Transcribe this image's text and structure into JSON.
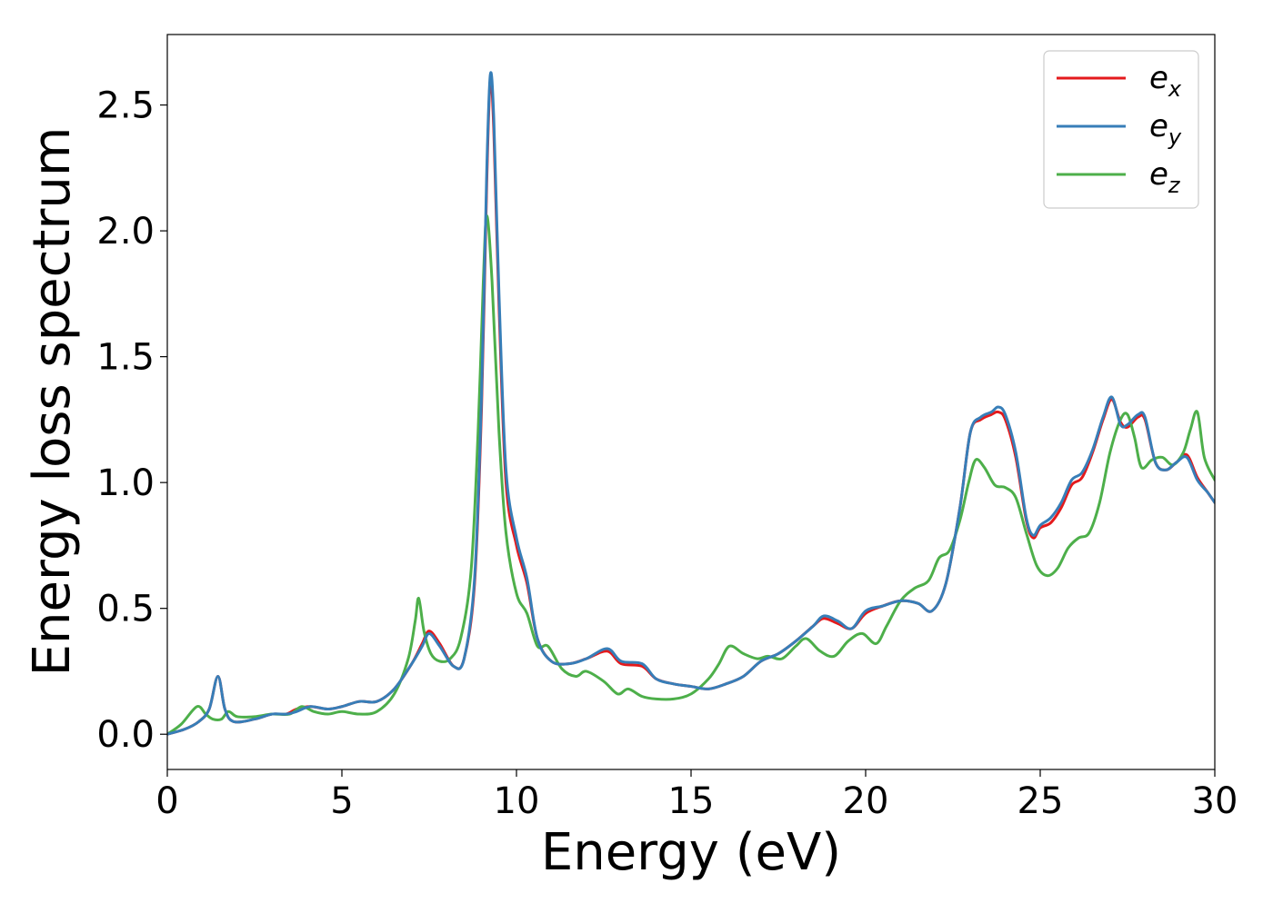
{
  "chart_data": {
    "type": "line",
    "title": "",
    "xlabel": "Energy (eV)",
    "ylabel": "Energy loss spectrum",
    "xlim": [
      0,
      30
    ],
    "ylim": [
      -0.14,
      2.78
    ],
    "xticks": [
      0,
      5,
      10,
      15,
      20,
      25,
      30
    ],
    "xtick_labels": [
      "0",
      "5",
      "10",
      "15",
      "20",
      "25",
      "30"
    ],
    "yticks": [
      0.0,
      0.5,
      1.0,
      1.5,
      2.0,
      2.5
    ],
    "ytick_labels": [
      "0.0",
      "0.5",
      "1.0",
      "1.5",
      "2.0",
      "2.5"
    ],
    "grid": false,
    "legend_position": "top-right",
    "series": [
      {
        "name": "e_x",
        "label_base": "e",
        "label_sub": "x",
        "color": "#e41a1c",
        "x": [
          0,
          0.5,
          0.9,
          1.2,
          1.45,
          1.65,
          1.9,
          2.5,
          3,
          3.4,
          3.7,
          4.1,
          4.6,
          5,
          5.5,
          6,
          6.5,
          7,
          7.3,
          7.5,
          7.8,
          8.2,
          8.5,
          8.8,
          9.0,
          9.15,
          9.25,
          9.35,
          9.5,
          9.7,
          10.0,
          10.3,
          10.6,
          11.0,
          11.5,
          12.0,
          12.6,
          13.0,
          13.6,
          14.0,
          14.5,
          15.0,
          15.5,
          16.0,
          16.5,
          17.0,
          17.5,
          18.0,
          18.5,
          18.8,
          19.2,
          19.6,
          20.0,
          20.5,
          21.0,
          21.5,
          21.9,
          22.3,
          22.7,
          23.0,
          23.3,
          23.6,
          23.8,
          24.0,
          24.3,
          24.6,
          24.8,
          25.0,
          25.3,
          25.6,
          25.9,
          26.2,
          26.5,
          26.8,
          27.05,
          27.3,
          27.5,
          27.8,
          28.0,
          28.3,
          28.6,
          28.9,
          29.2,
          29.5,
          29.8,
          30.0
        ],
        "values": [
          0.0,
          0.02,
          0.05,
          0.1,
          0.23,
          0.1,
          0.05,
          0.06,
          0.08,
          0.08,
          0.1,
          0.11,
          0.1,
          0.11,
          0.13,
          0.13,
          0.18,
          0.28,
          0.36,
          0.41,
          0.36,
          0.27,
          0.3,
          0.6,
          1.3,
          2.2,
          2.6,
          2.4,
          1.7,
          1.0,
          0.75,
          0.6,
          0.38,
          0.29,
          0.28,
          0.3,
          0.33,
          0.28,
          0.27,
          0.22,
          0.2,
          0.19,
          0.18,
          0.2,
          0.23,
          0.29,
          0.32,
          0.37,
          0.43,
          0.46,
          0.44,
          0.42,
          0.48,
          0.51,
          0.53,
          0.52,
          0.49,
          0.6,
          0.9,
          1.2,
          1.25,
          1.27,
          1.28,
          1.25,
          1.1,
          0.85,
          0.78,
          0.82,
          0.84,
          0.9,
          0.99,
          1.02,
          1.12,
          1.25,
          1.33,
          1.24,
          1.22,
          1.26,
          1.25,
          1.08,
          1.05,
          1.08,
          1.11,
          1.02,
          0.96,
          0.92
        ]
      },
      {
        "name": "e_y",
        "label_base": "e",
        "label_sub": "y",
        "color": "#377eb8",
        "x": [
          0,
          0.5,
          0.9,
          1.2,
          1.45,
          1.65,
          1.9,
          2.5,
          3,
          3.4,
          3.7,
          4.1,
          4.6,
          5,
          5.5,
          6,
          6.5,
          7,
          7.3,
          7.5,
          7.8,
          8.2,
          8.5,
          8.8,
          9.0,
          9.15,
          9.25,
          9.35,
          9.5,
          9.7,
          10.0,
          10.3,
          10.6,
          11.0,
          11.5,
          12.0,
          12.6,
          13.0,
          13.6,
          14.0,
          14.5,
          15.0,
          15.5,
          16.0,
          16.5,
          17.0,
          17.5,
          18.0,
          18.5,
          18.8,
          19.2,
          19.6,
          20.0,
          20.5,
          21.0,
          21.5,
          21.9,
          22.3,
          22.7,
          23.0,
          23.3,
          23.6,
          23.8,
          24.0,
          24.3,
          24.6,
          24.8,
          25.0,
          25.3,
          25.6,
          25.9,
          26.2,
          26.5,
          26.8,
          27.05,
          27.3,
          27.5,
          27.8,
          28.0,
          28.3,
          28.6,
          28.9,
          29.2,
          29.5,
          29.8,
          30.0
        ],
        "values": [
          0.0,
          0.02,
          0.05,
          0.1,
          0.23,
          0.1,
          0.05,
          0.06,
          0.08,
          0.08,
          0.09,
          0.11,
          0.1,
          0.11,
          0.13,
          0.13,
          0.18,
          0.28,
          0.35,
          0.4,
          0.35,
          0.27,
          0.3,
          0.62,
          1.35,
          2.25,
          2.62,
          2.45,
          1.75,
          1.05,
          0.78,
          0.62,
          0.38,
          0.29,
          0.28,
          0.3,
          0.34,
          0.29,
          0.28,
          0.22,
          0.2,
          0.19,
          0.18,
          0.2,
          0.23,
          0.29,
          0.32,
          0.37,
          0.43,
          0.47,
          0.45,
          0.42,
          0.49,
          0.51,
          0.53,
          0.52,
          0.49,
          0.6,
          0.9,
          1.2,
          1.26,
          1.28,
          1.3,
          1.27,
          1.12,
          0.86,
          0.79,
          0.83,
          0.86,
          0.92,
          1.01,
          1.04,
          1.13,
          1.26,
          1.34,
          1.23,
          1.23,
          1.27,
          1.26,
          1.08,
          1.05,
          1.08,
          1.1,
          1.01,
          0.96,
          0.92
        ]
      },
      {
        "name": "e_z",
        "label_base": "e",
        "label_sub": "z",
        "color": "#4daf4a",
        "x": [
          0,
          0.4,
          0.85,
          1.1,
          1.3,
          1.55,
          1.75,
          2.0,
          2.5,
          3.0,
          3.5,
          3.85,
          4.2,
          4.6,
          5.0,
          5.5,
          6.0,
          6.5,
          6.9,
          7.1,
          7.2,
          7.35,
          7.55,
          7.8,
          8.1,
          8.4,
          8.7,
          8.9,
          9.05,
          9.15,
          9.3,
          9.5,
          9.7,
          10.0,
          10.3,
          10.6,
          10.9,
          11.3,
          11.7,
          12.0,
          12.5,
          12.9,
          13.2,
          13.6,
          14.0,
          14.5,
          15.0,
          15.5,
          15.8,
          16.1,
          16.5,
          16.9,
          17.2,
          17.6,
          18.0,
          18.3,
          18.7,
          19.1,
          19.5,
          19.9,
          20.3,
          20.6,
          21.0,
          21.4,
          21.8,
          22.1,
          22.4,
          22.7,
          22.95,
          23.15,
          23.4,
          23.7,
          24.0,
          24.3,
          24.6,
          24.9,
          25.2,
          25.5,
          25.8,
          26.1,
          26.4,
          26.7,
          27.0,
          27.3,
          27.5,
          27.7,
          27.9,
          28.2,
          28.5,
          28.8,
          29.1,
          29.3,
          29.5,
          29.7,
          30.0
        ],
        "values": [
          0.0,
          0.04,
          0.11,
          0.08,
          0.06,
          0.06,
          0.09,
          0.07,
          0.07,
          0.08,
          0.08,
          0.11,
          0.09,
          0.08,
          0.09,
          0.08,
          0.09,
          0.16,
          0.3,
          0.45,
          0.54,
          0.41,
          0.32,
          0.29,
          0.3,
          0.38,
          0.65,
          1.2,
          1.8,
          2.06,
          1.8,
          1.2,
          0.8,
          0.56,
          0.48,
          0.35,
          0.35,
          0.26,
          0.23,
          0.25,
          0.21,
          0.16,
          0.18,
          0.15,
          0.14,
          0.14,
          0.16,
          0.22,
          0.28,
          0.35,
          0.32,
          0.3,
          0.31,
          0.3,
          0.35,
          0.38,
          0.33,
          0.31,
          0.37,
          0.4,
          0.36,
          0.43,
          0.53,
          0.58,
          0.61,
          0.7,
          0.73,
          0.85,
          1.0,
          1.09,
          1.06,
          0.99,
          0.98,
          0.94,
          0.8,
          0.67,
          0.63,
          0.66,
          0.74,
          0.78,
          0.8,
          0.92,
          1.12,
          1.25,
          1.27,
          1.18,
          1.06,
          1.09,
          1.1,
          1.07,
          1.12,
          1.21,
          1.28,
          1.1,
          1.01
        ]
      }
    ]
  }
}
